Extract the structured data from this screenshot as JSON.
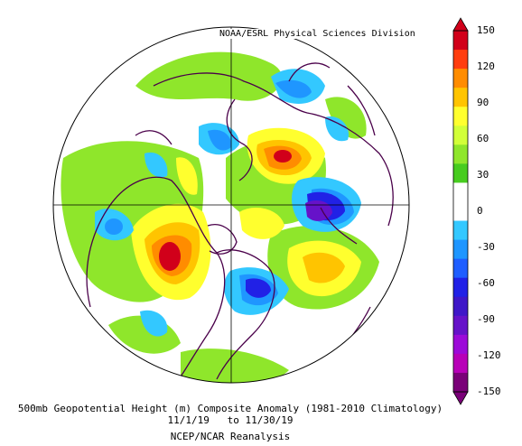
{
  "credit": "NOAA/ESRL Physical Sciences Division",
  "caption": {
    "line1": "500mb Geopotential Height (m) Composite Anomaly (1981-2010 Climatology)",
    "line2": "11/1/19   to 11/30/19",
    "line3": "NCEP/NCAR Reanalysis"
  },
  "colorbar": {
    "tick_labels": [
      "150",
      "120",
      "90",
      "60",
      "30",
      "0",
      "-30",
      "-60",
      "-90",
      "-120",
      "-150"
    ],
    "colors": [
      "#d1001a",
      "#ff3d0f",
      "#ff8c00",
      "#ffc400",
      "#ffff2e",
      "#d2ff38",
      "#8fe62b",
      "#47cc1f",
      "#ffffff",
      "#ffffff",
      "#33c8ff",
      "#1f96ff",
      "#1f5eff",
      "#2121e6",
      "#3f17c8",
      "#6612c9",
      "#9c0ad8",
      "#b800b8",
      "#7a0078"
    ]
  },
  "map": {
    "projection": "north polar stereographic",
    "anomalies": [
      {
        "name": "positive-anomaly-western-north-america",
        "value": 150
      },
      {
        "name": "positive-anomaly-northern-siberia",
        "value": 120
      },
      {
        "name": "positive-anomaly-north-atlantic",
        "value": 90
      },
      {
        "name": "negative-anomaly-northeast-north-america",
        "value": -90
      },
      {
        "name": "negative-anomaly-scandinavia-arctic",
        "value": -60
      },
      {
        "name": "negative-anomaly-siberian-pacific",
        "value": -90
      }
    ]
  }
}
